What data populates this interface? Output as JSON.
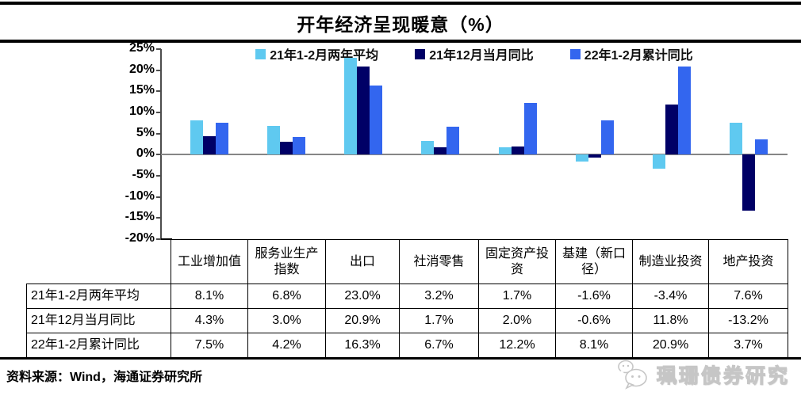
{
  "title": "开年经济呈现暖意（%）",
  "source": "资料来源：Wind，海通证券研究所",
  "watermark": {
    "label": "珮珊债券研究",
    "icon": "wechat-icon"
  },
  "colors": {
    "series1": "#5FC9F0",
    "series2": "#000066",
    "series3": "#3366EF",
    "zero_line": "#868686",
    "axis": "#4d4d4d",
    "table_border": "#000000"
  },
  "chart_data": {
    "type": "bar",
    "title": "开年经济呈现暖意（%）",
    "categories": [
      "工业增加值",
      "服务业生产指数",
      "出口",
      "社消零售",
      "固定资产投资",
      "基建（新口径）",
      "制造业投资",
      "地产投资"
    ],
    "series": [
      {
        "name": "21年1-2月两年平均",
        "color": "#5FC9F0",
        "values": [
          8.1,
          6.8,
          23.0,
          3.2,
          1.7,
          -1.6,
          -3.4,
          7.6
        ]
      },
      {
        "name": "21年12月当月同比",
        "color": "#000066",
        "values": [
          4.3,
          3.0,
          20.9,
          1.7,
          2.0,
          -0.6,
          11.8,
          -13.2
        ]
      },
      {
        "name": "22年1-2月累计同比",
        "color": "#3366EF",
        "values": [
          7.5,
          4.2,
          16.3,
          6.7,
          12.2,
          8.1,
          20.9,
          3.7
        ]
      }
    ],
    "ylim": [
      -20,
      25
    ],
    "ytick_step": 5,
    "ytick_labels": [
      "25%",
      "20%",
      "15%",
      "10%",
      "5%",
      "0%",
      "-5%",
      "-10%",
      "-15%",
      "-20%"
    ],
    "legend_position": "top",
    "grid": false
  },
  "table": {
    "row_headers": [
      "21年1-2月两年平均",
      "21年12月当月同比",
      "22年1-2月累计同比"
    ],
    "col_headers": [
      "工业增加值",
      "服务业生产指数",
      "出口",
      "社消零售",
      "固定资产投资",
      "基建（新口径）",
      "制造业投资",
      "地产投资"
    ],
    "rows": [
      [
        "8.1%",
        "6.8%",
        "23.0%",
        "3.2%",
        "1.7%",
        "-1.6%",
        "-3.4%",
        "7.6%"
      ],
      [
        "4.3%",
        "3.0%",
        "20.9%",
        "1.7%",
        "2.0%",
        "-0.6%",
        "11.8%",
        "-13.2%"
      ],
      [
        "7.5%",
        "4.2%",
        "16.3%",
        "6.7%",
        "12.2%",
        "8.1%",
        "20.9%",
        "3.7%"
      ]
    ]
  }
}
